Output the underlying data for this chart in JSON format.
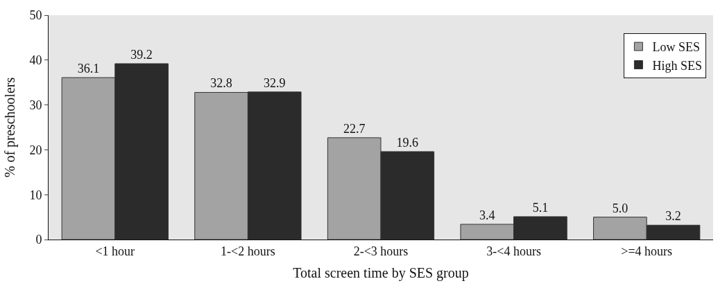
{
  "chart_data": {
    "type": "bar",
    "xlabel": "Total screen time by SES group",
    "ylabel": "% of preschoolers",
    "categories": [
      "<1 hour",
      "1-<2 hours",
      "2-<3 hours",
      "3-<4 hours",
      ">=4 hours"
    ],
    "series": [
      {
        "name": "Low SES",
        "color": "#a3a3a3",
        "values": [
          36.1,
          32.8,
          22.7,
          3.4,
          5.0
        ],
        "value_labels": [
          "36.1",
          "32.8",
          "22.7",
          "3.4",
          "5.0"
        ]
      },
      {
        "name": "High SES",
        "color": "#2b2b2b",
        "values": [
          39.2,
          32.9,
          19.6,
          5.1,
          3.2
        ],
        "value_labels": [
          "39.2",
          "32.9",
          "19.6",
          "5.1",
          "3.2"
        ]
      }
    ],
    "ylim": [
      0,
      50
    ],
    "yticks": [
      0,
      10,
      20,
      30,
      40,
      50
    ],
    "grid": false,
    "legend": "top right"
  }
}
